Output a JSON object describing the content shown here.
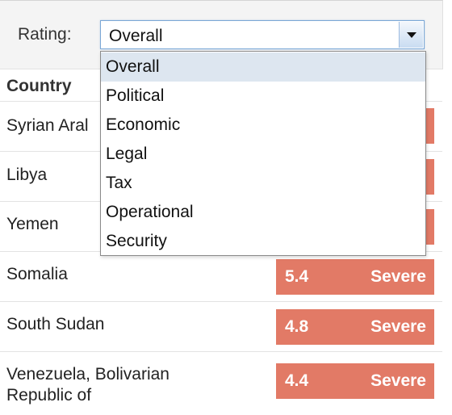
{
  "filter": {
    "label": "Rating:",
    "selected": "Overall",
    "options": [
      "Overall",
      "Political",
      "Economic",
      "Legal",
      "Tax",
      "Operational",
      "Security"
    ]
  },
  "table": {
    "column_country": "Country",
    "rows": [
      {
        "country": "Syrian Aral",
        "score": "",
        "level": ""
      },
      {
        "country": "Libya",
        "score": "",
        "level": ""
      },
      {
        "country": "Yemen",
        "score": "",
        "level": ""
      },
      {
        "country": "Somalia",
        "score": "5.4",
        "level": "Severe"
      },
      {
        "country": "South Sudan",
        "score": "4.8",
        "level": "Severe"
      },
      {
        "country": "Venezuela, Bolivarian Republic of",
        "score": "4.4",
        "level": "Severe"
      }
    ]
  },
  "colors": {
    "severe": "#e27a66",
    "highlight": "#dde6f0",
    "focus_border": "#7aa7d6"
  }
}
